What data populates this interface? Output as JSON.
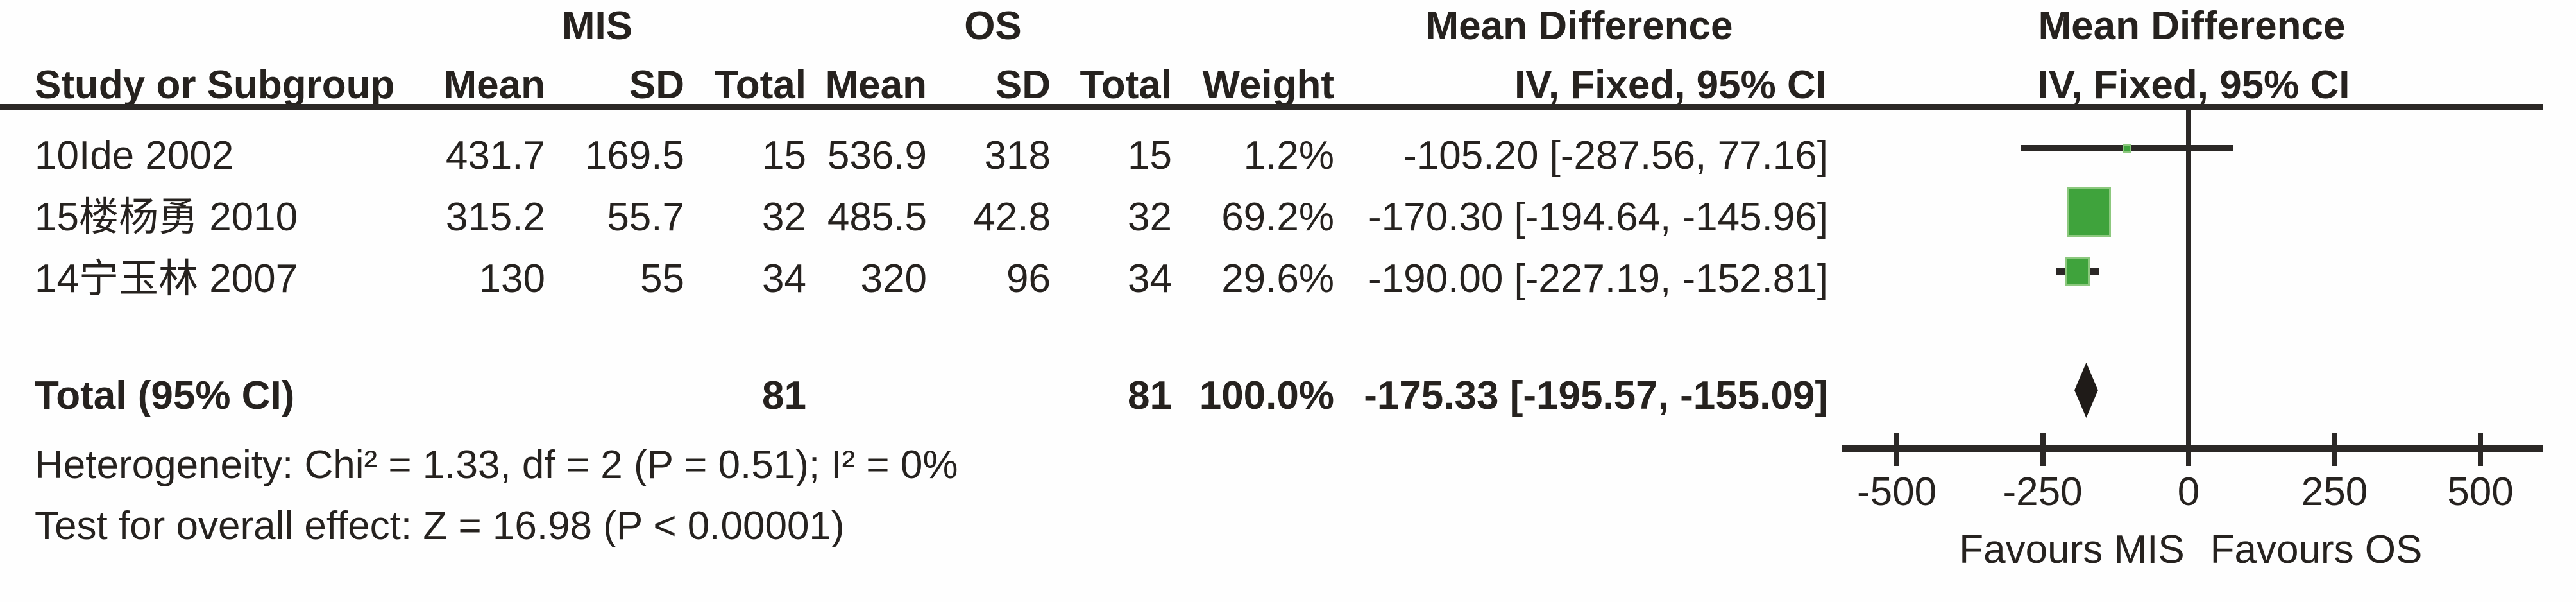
{
  "header": {
    "group1_label": "MIS",
    "group2_label": "OS",
    "md_left_title": "Mean Difference",
    "md_right_title": "Mean Difference",
    "columns": {
      "study": "Study or Subgroup",
      "mean1": "Mean",
      "sd1": "SD",
      "total1": "Total",
      "mean2": "Mean",
      "sd2": "SD",
      "total2": "Total",
      "weight": "Weight",
      "ci_left": "IV, Fixed, 95% CI",
      "ci_right": "IV, Fixed, 95% CI"
    }
  },
  "rows": [
    {
      "study": "10Ide 2002",
      "mean1": "431.7",
      "sd1": "169.5",
      "total1": "15",
      "mean2": "536.9",
      "sd2": "318",
      "total2": "15",
      "weight": "1.2%",
      "ci_text": "-105.20 [-287.56, 77.16]"
    },
    {
      "study": "15楼杨勇 2010",
      "mean1": "315.2",
      "sd1": "55.7",
      "total1": "32",
      "mean2": "485.5",
      "sd2": "42.8",
      "total2": "32",
      "weight": "69.2%",
      "ci_text": "-170.30 [-194.64, -145.96]"
    },
    {
      "study": "14宁玉林 2007",
      "mean1": "130",
      "sd1": "55",
      "total1": "34",
      "mean2": "320",
      "sd2": "96",
      "total2": "34",
      "weight": "29.6%",
      "ci_text": "-190.00 [-227.19, -152.81]"
    }
  ],
  "total_row": {
    "label": "Total (95% CI)",
    "total1": "81",
    "total2": "81",
    "weight": "100.0%",
    "ci_text": "-175.33 [-195.57, -155.09]"
  },
  "footnotes": {
    "heterogeneity": "Heterogeneity: Chi² = 1.33, df = 2 (P = 0.51); I² = 0%",
    "overall_effect": "Test for overall effect: Z = 16.98 (P < 0.00001)"
  },
  "plot_labels": {
    "favours_left": "Favours MIS",
    "favours_right": "Favours OS"
  },
  "colors": {
    "marker_green": "#3fa33c",
    "marker_green_edge": "#8cc87e",
    "diamond_black": "#1f1b18",
    "line_black": "#2b2826"
  },
  "chart_data": {
    "type": "forest",
    "effect_measure": "Mean Difference",
    "method": "IV, Fixed, 95% CI",
    "group1": "MIS",
    "group2": "OS",
    "studies": [
      {
        "name": "10Ide 2002",
        "md": -105.2,
        "ci_low": -287.56,
        "ci_high": 77.16,
        "weight_pct": 1.2,
        "mean1": 431.7,
        "sd1": 169.5,
        "n1": 15,
        "mean2": 536.9,
        "sd2": 318,
        "n2": 15
      },
      {
        "name": "15楼杨勇 2010",
        "md": -170.3,
        "ci_low": -194.64,
        "ci_high": -145.96,
        "weight_pct": 69.2,
        "mean1": 315.2,
        "sd1": 55.7,
        "n1": 32,
        "mean2": 485.5,
        "sd2": 42.8,
        "n2": 32
      },
      {
        "name": "14宁玉林 2007",
        "md": -190.0,
        "ci_low": -227.19,
        "ci_high": -152.81,
        "weight_pct": 29.6,
        "mean1": 130,
        "sd1": 55,
        "n1": 34,
        "mean2": 320,
        "sd2": 96,
        "n2": 34
      }
    ],
    "total": {
      "md": -175.33,
      "ci_low": -195.57,
      "ci_high": -155.09,
      "weight_pct": 100.0,
      "n1": 81,
      "n2": 81
    },
    "x_axis": {
      "min": -500,
      "max": 500,
      "ticks": [
        -500,
        -250,
        0,
        250,
        500
      ]
    },
    "heterogeneity": {
      "chi2": 1.33,
      "df": 2,
      "p": 0.51,
      "i2_pct": 0
    },
    "overall_effect": {
      "z": 16.98,
      "p": "< 0.00001"
    }
  }
}
